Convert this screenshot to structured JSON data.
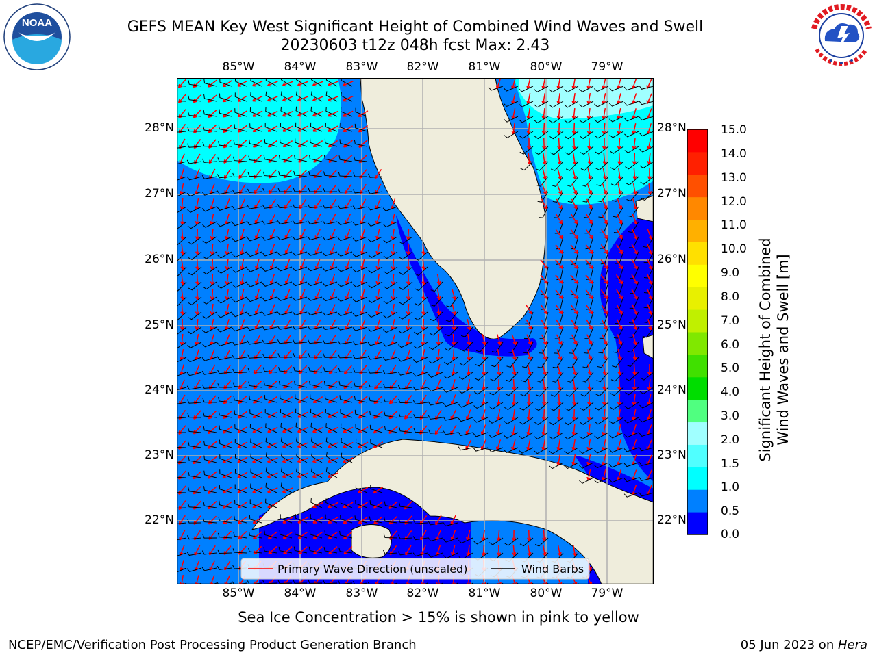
{
  "title": {
    "line1": "GEFS MEAN Key West Significant Height of Combined Wind Waves and Swell",
    "line2": "20230603 t12z 048h fcst   Max: 2.43"
  },
  "logos": {
    "left": {
      "name": "NOAA",
      "text": "NOAA",
      "ring_text": "NATIONAL OCEANIC AND ATMOSPHERIC ADMINISTRATION · U.S. DEPARTMENT OF COMMERCE"
    },
    "right": {
      "name": "NWS",
      "ring_text": "NATIONAL WEATHER SERVICE"
    }
  },
  "map": {
    "lon_labels": [
      "85°W",
      "84°W",
      "83°W",
      "82°W",
      "81°W",
      "80°W",
      "79°W"
    ],
    "lat_labels": [
      "28°N",
      "27°N",
      "26°N",
      "25°N",
      "24°N",
      "23°N",
      "22°N"
    ],
    "legend": {
      "primary": "Primary Wave Direction (unscaled)",
      "barbs": "Wind Barbs"
    },
    "colors": {
      "land": "#efeddc",
      "coast": "#000000",
      "grid": "#b0b0b0",
      "wave_arrow": "#ff0000",
      "barb": "#000000"
    }
  },
  "colorbar": {
    "label_line1": "Significant Height of Combined",
    "label_line2": "Wind Waves and Swell [m]",
    "ticks": [
      "15.0",
      "14.0",
      "13.0",
      "12.0",
      "11.0",
      "10.0",
      "9.0",
      "8.0",
      "7.0",
      "6.0",
      "5.0",
      "4.0",
      "3.0",
      "2.0",
      "1.5",
      "1.0",
      "0.5",
      "0.0"
    ],
    "bands": [
      "#0000ff",
      "#0080ff",
      "#00ffff",
      "#50ffff",
      "#a0ffff",
      "#50ff80",
      "#00dd00",
      "#40e000",
      "#80e800",
      "#c0f000",
      "#e8f000",
      "#ffff00",
      "#ffe000",
      "#ffb000",
      "#ff8800",
      "#ff5000",
      "#ff2000",
      "#ff0000"
    ]
  },
  "ice_note": "Sea Ice Concentration > 15% is shown in pink to yellow",
  "footer": {
    "left": "NCEP/EMC/Verification Post Processing Product Generation Branch",
    "right_date": "05 Jun 2023 on ",
    "right_host": "Hera"
  }
}
